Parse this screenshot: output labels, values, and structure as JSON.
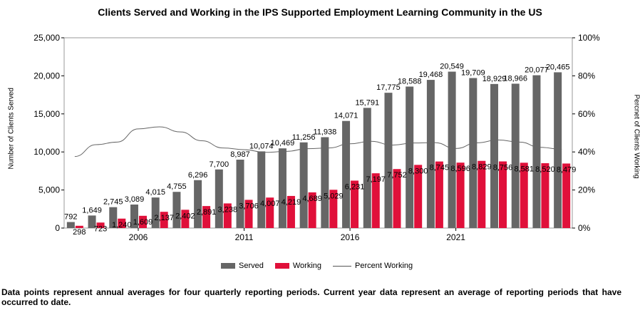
{
  "chart_data": {
    "type": "bar",
    "title": "Clients Served and Working in the IPS Supported Employment Learning Community in the US",
    "ylabel": "Number of Clients Served",
    "y2label": "Percnet of Clients Working",
    "ylim": [
      0,
      25000
    ],
    "y2lim": [
      0,
      100
    ],
    "yticks": [
      "0",
      "5,000",
      "10,000",
      "15,000",
      "20,000",
      "25,000"
    ],
    "y2ticks": [
      "0%",
      "20%",
      "40%",
      "60%",
      "80%",
      "100%"
    ],
    "xticks": [
      "2006",
      "2011",
      "2016",
      "2021"
    ],
    "series": [
      {
        "name": "Served",
        "color": "#666666",
        "values": [
          792,
          1649,
          2745,
          3089,
          4015,
          4755,
          6296,
          7700,
          8987,
          10074,
          10469,
          11256,
          11938,
          14071,
          15791,
          17775,
          18588,
          19468,
          20549,
          19709,
          18929,
          18966,
          20077,
          20465
        ],
        "labels": [
          "792",
          "1,649",
          "2,745",
          "3,089",
          "4,015",
          "4,755",
          "6,296",
          "7,700",
          "8,987",
          "10,074",
          "10,469",
          "11,256",
          "11,938",
          "14,071",
          "15,791",
          "17,775",
          "18,588",
          "19,468",
          "20,549",
          "19,709",
          "18,929",
          "18,966",
          "20,077",
          "20,465"
        ]
      },
      {
        "name": "Working",
        "color": "#e0103a",
        "values": [
          298,
          723,
          1240,
          1609,
          2137,
          2402,
          2891,
          3238,
          3706,
          4007,
          4219,
          4689,
          5029,
          6231,
          7197,
          7752,
          8300,
          8745,
          8596,
          8829,
          8756,
          8581,
          8520,
          8479
        ],
        "labels": [
          "298",
          "723",
          "1,240",
          "1,609",
          "2,137",
          "2,402",
          "2,891",
          "3,238",
          "3,706",
          "4,007",
          "4,219",
          "4,689",
          "5,029",
          "6,231",
          "7,197",
          "7,752",
          "8,300",
          "8,745",
          "8,596",
          "8,829",
          "8,756",
          "8,581",
          "8,520",
          "8,479"
        ]
      },
      {
        "name": "Percent Working",
        "color": "#666666",
        "type": "line",
        "values": [
          37.6,
          43.8,
          45.2,
          52.1,
          53.2,
          50.5,
          45.9,
          42.1,
          41.2,
          39.8,
          40.3,
          41.7,
          42.1,
          44.3,
          45.6,
          43.6,
          44.7,
          44.9,
          41.8,
          44.8,
          46.3,
          45.2,
          42.4,
          41.4
        ]
      }
    ],
    "legend": [
      "Served",
      "Working",
      "Percent Working"
    ]
  },
  "note": "Data points represent annual averages for four quarterly reporting periods. Current year data represent an average of reporting periods that have occurred to date."
}
